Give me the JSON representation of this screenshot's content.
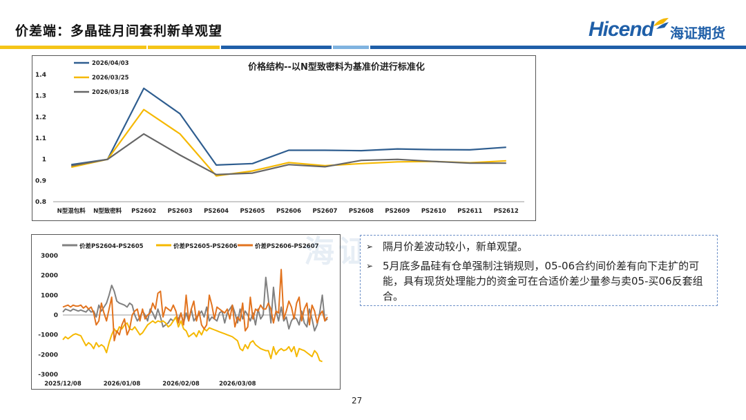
{
  "slide": {
    "title": "价差端：多晶硅月间套利新单观望",
    "page_number": "27",
    "logo_text": "Hicend",
    "logo_cn": "海证期货",
    "watermark": "海证期货",
    "stripe_colors": [
      "#f5c518",
      "#f5c518",
      "#1f5fa8",
      "#7fb3e0",
      "#1f5fa8"
    ]
  },
  "notes": [
    "隔月价差波动较小，新单观望。",
    "5月底多晶硅有仓单强制注销规则，05-06合约间价差有向下走扩的可能，具有现货处理能力的资金可在合适价差少量参与卖05-买06反套组合。"
  ],
  "chart_data": [
    {
      "type": "line",
      "title": "价格结构--以N型致密料为基准价进行标准化",
      "categories": [
        "N型混包料",
        "N型致密料",
        "PS2602",
        "PS2603",
        "PS2604",
        "PS2605",
        "PS2606",
        "PS2607",
        "PS2608",
        "PS2609",
        "PS2610",
        "PS2611",
        "PS2612"
      ],
      "ylim": [
        0.8,
        1.4
      ],
      "yticks": [
        "0.8",
        "0.9",
        "1",
        "1.1",
        "1.2",
        "1.3",
        "1.4"
      ],
      "legend_position": "top-left",
      "series": [
        {
          "name": "2026/04/03",
          "color": "#2e5d8f",
          "values": [
            0.975,
            1.0,
            1.335,
            1.215,
            0.973,
            0.98,
            1.043,
            1.043,
            1.041,
            1.049,
            1.046,
            1.045,
            1.057
          ]
        },
        {
          "name": "2026/03/25",
          "color": "#f5b800",
          "values": [
            0.963,
            1.0,
            1.235,
            1.12,
            0.922,
            0.945,
            0.985,
            0.97,
            0.98,
            0.988,
            0.99,
            0.984,
            0.993
          ]
        },
        {
          "name": "2026/03/18",
          "color": "#666666",
          "values": [
            0.97,
            1.0,
            1.12,
            1.02,
            0.928,
            0.935,
            0.975,
            0.965,
            0.995,
            1.0,
            0.99,
            0.982,
            0.982
          ]
        }
      ]
    },
    {
      "type": "line",
      "ylim": [
        -3000,
        3000
      ],
      "yticks": [
        "-3000",
        "-2000",
        "-1000",
        "0",
        "1000",
        "2000",
        "3000"
      ],
      "xticks": [
        "2025/12/08",
        "2026/01/08",
        "2026/02/08",
        "2026/03/08"
      ],
      "xtick_index": [
        0,
        23,
        46,
        68
      ],
      "legend_position": "top",
      "series": [
        {
          "name": "价差PS2604-PS2605",
          "color": "#808080",
          "values": [
            150,
            300,
            250,
            200,
            300,
            250,
            200,
            250,
            200,
            150,
            300,
            150,
            200,
            -100,
            500,
            200,
            400,
            600,
            1000,
            1500,
            1200,
            700,
            600,
            550,
            500,
            400,
            600,
            500,
            0,
            -300,
            -100,
            200,
            0,
            -300,
            300,
            100,
            -200,
            300,
            -100,
            -600,
            -500,
            -400,
            -200,
            -300,
            -100,
            -200,
            100,
            -400,
            100,
            -300,
            300,
            -300,
            -100,
            0,
            200,
            -100,
            400,
            -300,
            -100,
            -200,
            -300,
            100,
            200,
            -400,
            100,
            300,
            500,
            100,
            -400,
            300,
            -200,
            200,
            0,
            -300,
            100,
            -500,
            300,
            -200,
            0,
            1900,
            800,
            -400,
            1400,
            200,
            -300,
            400,
            -300,
            -100,
            -700,
            -300,
            -100,
            -200,
            -500,
            200,
            -400,
            -600,
            300,
            -200,
            -800,
            -500,
            100,
            1000,
            -300,
            -200
          ]
        },
        {
          "name": "价差PS2605-PS2606",
          "color": "#f5b800",
          "values": [
            -1250,
            -1100,
            -1200,
            -1100,
            -1000,
            -950,
            -1000,
            -1050,
            -1300,
            -1550,
            -1400,
            -1500,
            -1700,
            -1400,
            -1600,
            -1500,
            -1600,
            -1900,
            -1400,
            -1000,
            -700,
            -900,
            -600,
            -700,
            -500,
            -400,
            -700,
            -750,
            -600,
            -800,
            -1000,
            -900,
            -700,
            -500,
            -400,
            -300,
            -400,
            -300,
            -350,
            -300,
            -400,
            -600,
            -500,
            -300,
            -100,
            -600,
            -300,
            -700,
            -800,
            -1100,
            -1000,
            -900,
            -1100,
            -800,
            -1000,
            -700,
            -800,
            -650,
            -700,
            -750,
            -800,
            -850,
            -900,
            -950,
            -1000,
            -1050,
            -1100,
            -1200,
            -1300,
            -1700,
            -1800,
            -1500,
            -1700,
            -1400,
            -1300,
            -1500,
            -1600,
            -1700,
            -1750,
            -1800,
            -1800,
            -2200,
            -1600,
            -2000,
            -1800,
            -1700,
            -1800,
            -1750,
            -1600,
            -1850,
            -1600,
            -2100,
            -1700,
            -1750,
            -1800,
            -1900,
            -2000,
            -2100,
            -1800,
            -1950,
            -2300,
            -2350
          ]
        },
        {
          "name": "价差PS2606-PS2607",
          "color": "#e2731e",
          "values": [
            400,
            450,
            500,
            400,
            500,
            450,
            450,
            500,
            350,
            450,
            300,
            400,
            100,
            -500,
            -300,
            600,
            100,
            -300,
            300,
            900,
            -1300,
            -800,
            -1000,
            -500,
            -200,
            -1000,
            -700,
            0,
            200,
            300,
            -300,
            300,
            -200,
            0,
            100,
            600,
            300,
            1100,
            1200,
            -100,
            400,
            300,
            200,
            500,
            200,
            -400,
            100,
            -500,
            1000,
            -300,
            300,
            700,
            -300,
            200,
            -500,
            -700,
            -500,
            1000,
            500,
            -200,
            400,
            300,
            200,
            100,
            300,
            -200,
            500,
            -600,
            -100,
            -300,
            600,
            -800,
            -600,
            900,
            -200,
            300,
            200,
            500,
            300,
            300,
            600,
            300,
            -400,
            200,
            100,
            2300,
            -200,
            200,
            700,
            400,
            -200,
            600,
            900,
            -300,
            300,
            600,
            -500,
            500,
            200,
            -400,
            0,
            200,
            -300,
            -100
          ]
        }
      ]
    }
  ]
}
